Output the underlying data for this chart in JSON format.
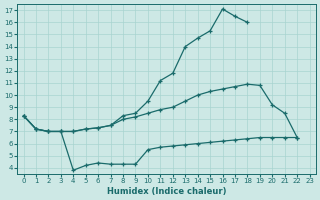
{
  "xlabel": "Humidex (Indice chaleur)",
  "bg_color": "#cde8e5",
  "line_color": "#1a6b6b",
  "grid_color": "#a8d4d0",
  "xlim": [
    -0.5,
    23.5
  ],
  "ylim": [
    3.5,
    17.5
  ],
  "xticks": [
    0,
    1,
    2,
    3,
    4,
    5,
    6,
    7,
    8,
    9,
    10,
    11,
    12,
    13,
    14,
    15,
    16,
    17,
    18,
    19,
    20,
    21,
    22,
    23
  ],
  "yticks": [
    4,
    5,
    6,
    7,
    8,
    9,
    10,
    11,
    12,
    13,
    14,
    15,
    16,
    17
  ],
  "curve_upper_x": [
    0,
    1,
    2,
    3,
    4,
    5,
    6,
    7,
    8,
    9,
    10,
    11,
    12,
    13,
    14,
    15,
    16,
    17,
    18
  ],
  "curve_upper_y": [
    8.3,
    7.2,
    7.0,
    7.0,
    7.0,
    7.2,
    7.3,
    7.5,
    8.3,
    8.5,
    9.5,
    11.2,
    11.8,
    14.0,
    14.7,
    15.3,
    17.1,
    16.5,
    16.0
  ],
  "curve_mid_x": [
    0,
    1,
    2,
    3,
    4,
    5,
    6,
    7,
    8,
    9,
    10,
    11,
    12,
    13,
    14,
    15,
    16,
    17,
    18,
    19,
    20,
    21,
    22
  ],
  "curve_mid_y": [
    8.3,
    7.2,
    7.0,
    7.0,
    7.0,
    7.2,
    7.3,
    7.5,
    8.0,
    8.2,
    8.5,
    8.8,
    9.0,
    9.5,
    10.0,
    10.3,
    10.5,
    10.7,
    10.9,
    10.8,
    9.2,
    8.5,
    6.5
  ],
  "curve_low_x": [
    0,
    1,
    2,
    3,
    4,
    5,
    6,
    7,
    8,
    9,
    10,
    11,
    12,
    13,
    14,
    15,
    16,
    17,
    18,
    19,
    20,
    21,
    22
  ],
  "curve_low_y": [
    8.3,
    7.2,
    7.0,
    7.0,
    3.8,
    4.2,
    4.4,
    4.3,
    4.3,
    4.3,
    5.5,
    5.7,
    5.8,
    5.9,
    6.0,
    6.1,
    6.2,
    6.3,
    6.4,
    6.5,
    6.5,
    6.5,
    6.5
  ]
}
